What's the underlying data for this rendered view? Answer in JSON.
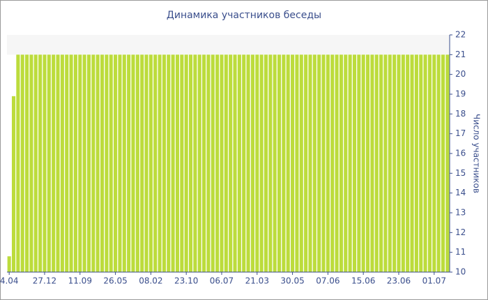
{
  "chart_data": {
    "type": "bar",
    "title": "Динамика участников беседы",
    "y_label": "Число участников",
    "categories": [
      "4.04",
      null,
      null,
      null,
      null,
      null,
      null,
      null,
      "27.12",
      null,
      null,
      null,
      null,
      null,
      null,
      null,
      "11.09",
      null,
      null,
      null,
      null,
      null,
      null,
      null,
      "26.05",
      null,
      null,
      null,
      null,
      null,
      null,
      null,
      "08.02",
      null,
      null,
      null,
      null,
      null,
      null,
      null,
      "23.10",
      null,
      null,
      null,
      null,
      null,
      null,
      null,
      "06.07",
      null,
      null,
      null,
      null,
      null,
      null,
      null,
      "21.03",
      null,
      null,
      null,
      null,
      null,
      null,
      null,
      "30.05",
      null,
      null,
      null,
      null,
      null,
      null,
      null,
      "07.06",
      null,
      null,
      null,
      null,
      null,
      null,
      null,
      "15.06",
      null,
      null,
      null,
      null,
      null,
      null,
      null,
      "23.06",
      null,
      null,
      null,
      null,
      null,
      null,
      null,
      "01.07",
      null,
      null,
      null
    ],
    "values": [
      10.8,
      18.9,
      21,
      21,
      21,
      21,
      21,
      21,
      21,
      21,
      21,
      21,
      21,
      21,
      21,
      21,
      21,
      21,
      21,
      21,
      21,
      21,
      21,
      21,
      21,
      21,
      21,
      21,
      21,
      21,
      21,
      21,
      21,
      21,
      21,
      21,
      21,
      21,
      21,
      21,
      21,
      21,
      21,
      21,
      21,
      21,
      21,
      21,
      21,
      21,
      21,
      21,
      21,
      21,
      21,
      21,
      21,
      21,
      21,
      21,
      21,
      21,
      21,
      21,
      21,
      21,
      21,
      21,
      21,
      21,
      21,
      21,
      21,
      21,
      21,
      21,
      21,
      21,
      21,
      21,
      21,
      21,
      21,
      21,
      21,
      21,
      21,
      21,
      21,
      21,
      21,
      21,
      21,
      21,
      21,
      21,
      21,
      21,
      21,
      21
    ],
    "color": "#bcdc3c",
    "ylim": [
      10,
      22
    ],
    "yticks": [
      10,
      11,
      12,
      13,
      14,
      15,
      16,
      17,
      18,
      19,
      20,
      21,
      22
    ],
    "y_axis_side": "right"
  }
}
